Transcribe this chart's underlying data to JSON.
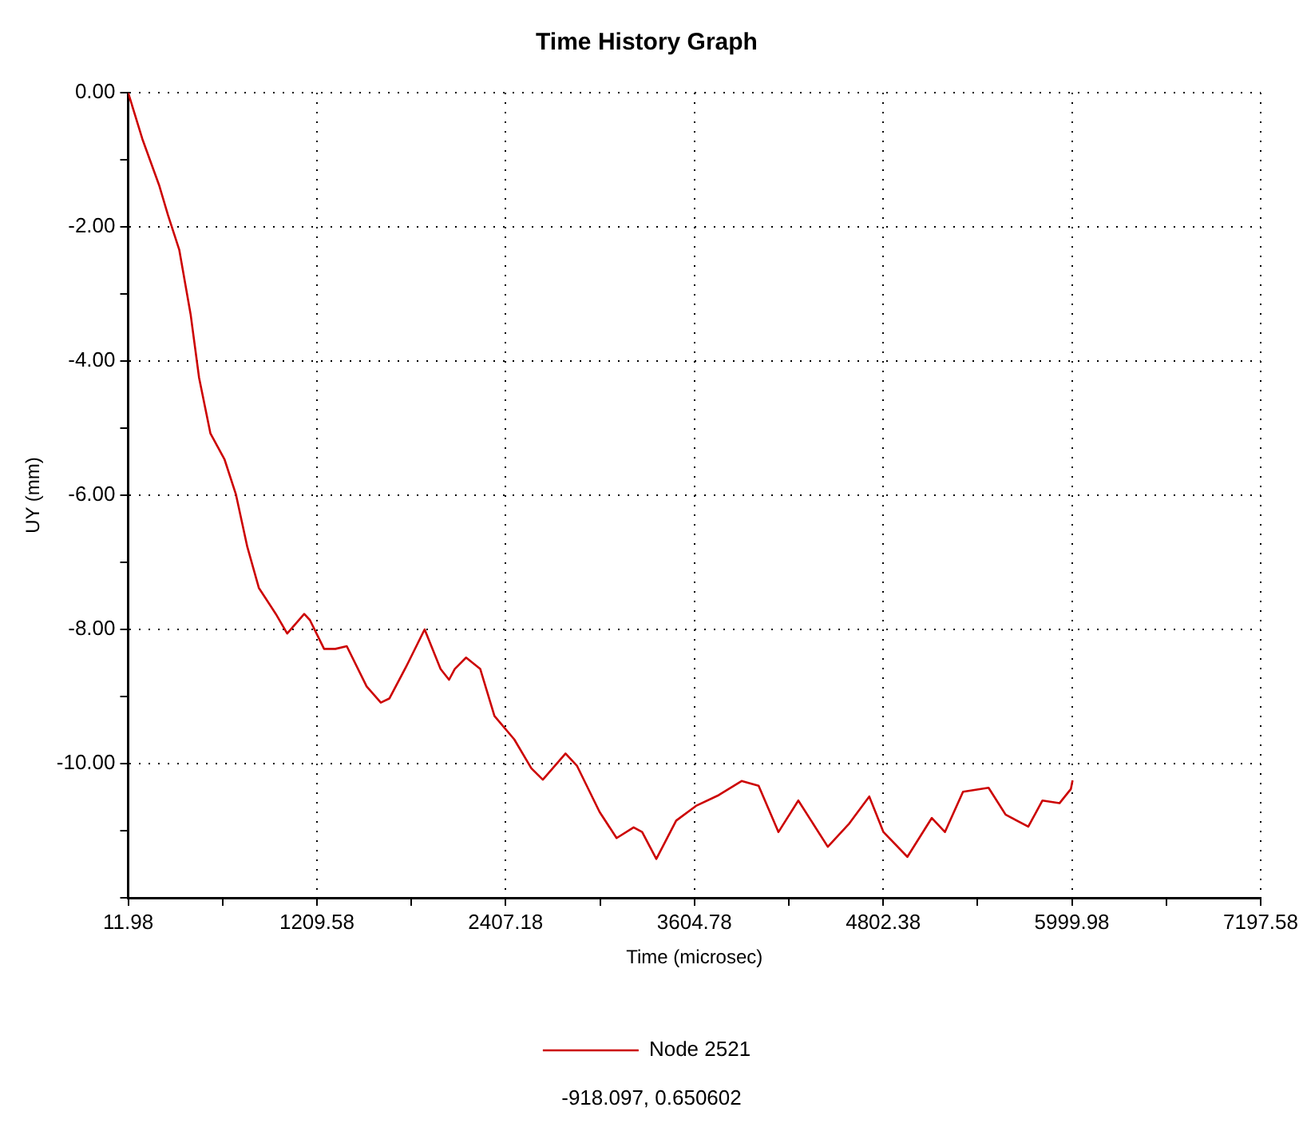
{
  "chart_data": {
    "type": "line",
    "title": "Time History Graph",
    "xlabel": "Time (microsec)",
    "ylabel": "UY (mm)",
    "x": [
      12,
      102,
      210,
      264,
      336,
      408,
      462,
      534,
      624,
      696,
      768,
      841,
      949,
      1021,
      1129,
      1165,
      1255,
      1327,
      1399,
      1525,
      1615,
      1669,
      1777,
      1893,
      1994,
      2048,
      2084,
      2156,
      2246,
      2336,
      2462,
      2570,
      2643,
      2787,
      2859,
      3003,
      3111,
      3219,
      3273,
      3363,
      3489,
      3615,
      3759,
      3904,
      4012,
      4138,
      4264,
      4451,
      4588,
      4714,
      4804,
      4956,
      5111,
      5194,
      5309,
      5471,
      5579,
      5723,
      5813,
      5921,
      5993,
      6004
    ],
    "series": [
      {
        "name": "Node 2521",
        "color": "#cc0000",
        "values": [
          0,
          -0.69,
          -1.39,
          -1.82,
          -2.34,
          -3.3,
          -4.25,
          -5.08,
          -5.47,
          -5.99,
          -6.77,
          -7.38,
          -7.77,
          -8.06,
          -7.77,
          -7.86,
          -8.29,
          -8.29,
          -8.25,
          -8.85,
          -9.09,
          -9.03,
          -8.55,
          -8.0,
          -8.59,
          -8.75,
          -8.59,
          -8.42,
          -8.59,
          -9.29,
          -9.64,
          -10.07,
          -10.24,
          -9.85,
          -10.03,
          -10.72,
          -11.11,
          -10.95,
          -11.02,
          -11.42,
          -10.85,
          -10.63,
          -10.47,
          -10.26,
          -10.33,
          -11.02,
          -10.55,
          -11.24,
          -10.89,
          -10.49,
          -11.02,
          -11.39,
          -10.81,
          -11.02,
          -10.42,
          -10.36,
          -10.76,
          -10.94,
          -10.55,
          -10.59,
          -10.38,
          -10.25
        ]
      }
    ],
    "xlim": [
      11.98,
      7197.58
    ],
    "xticks": [
      11.98,
      {
        "value": 610.78,
        "label": null
      },
      1209.58,
      {
        "value": 1808.38,
        "label": null
      },
      2407.18,
      {
        "value": 3005.98,
        "label": null
      },
      3604.78,
      {
        "value": 4203.58,
        "label": null
      },
      4802.38,
      {
        "value": 5401.18,
        "label": null
      },
      5999.98,
      {
        "value": 6598.78,
        "label": null
      },
      7197.58
    ],
    "ylim": [
      -12,
      0
    ],
    "yticks": [
      {
        "value": -12,
        "label": null
      },
      {
        "value": -11,
        "label": null
      },
      {
        "value": -10,
        "label": "-10.00"
      },
      {
        "value": -9,
        "label": null
      },
      {
        "value": -8,
        "label": "-8.00"
      },
      {
        "value": -7,
        "label": null
      },
      {
        "value": -6,
        "label": "-6.00"
      },
      {
        "value": -5,
        "label": null
      },
      {
        "value": -4,
        "label": "-4.00"
      },
      {
        "value": -3,
        "label": null
      },
      {
        "value": -2,
        "label": "-2.00"
      },
      {
        "value": -1,
        "label": null
      },
      {
        "value": 0,
        "label": "0.00"
      }
    ],
    "grid": true,
    "legend": "bottom",
    "marker": "none",
    "line_style": "solid",
    "annotations": [
      "-918.097, 0.650602"
    ]
  }
}
